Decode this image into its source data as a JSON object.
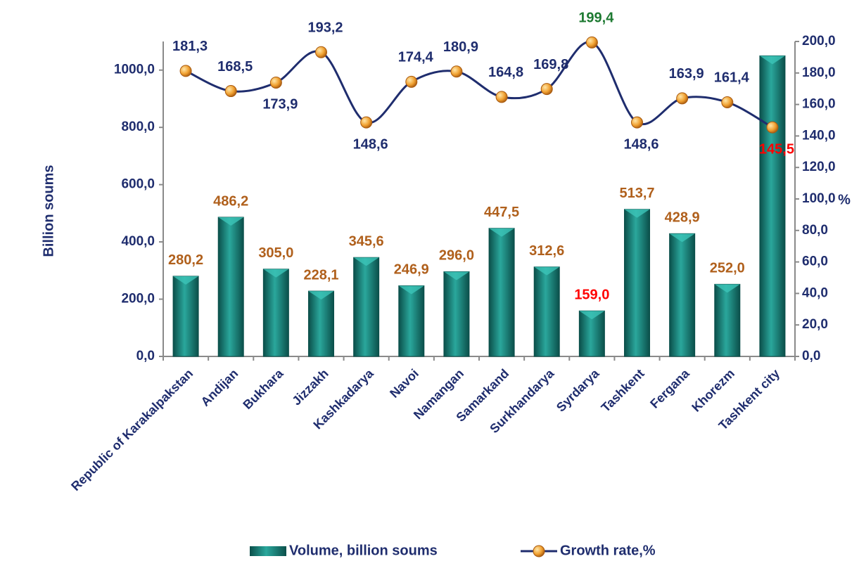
{
  "chart_data": {
    "type": "bar_line",
    "categories": [
      "Republic of Karakalpakstan",
      "Andijan",
      "Bukhara",
      "Jizzakh",
      "Kashkadarya",
      "Navoi",
      "Namangan",
      "Samarkand",
      "Surkhandarya",
      "Syrdarya",
      "Tashkent",
      "Fergana",
      "Khorezm",
      "Tashkent city"
    ],
    "series": [
      {
        "name": "Volume, billion soums",
        "type": "bar",
        "color": "#1a8a80",
        "values": [
          280.2,
          486.2,
          305.0,
          228.1,
          345.6,
          246.9,
          296.0,
          447.5,
          312.6,
          159.0,
          513.7,
          428.9,
          252.0,
          1050
        ],
        "value_labels": [
          "280,2",
          "486,2",
          "305,0",
          "228,1",
          "345,6",
          "246,9",
          "296,0",
          "447,5",
          "312,6",
          "159,0",
          "513,7",
          "428,9",
          "252,0",
          null
        ],
        "value_label_colors": [
          "#b0601c",
          "#b0601c",
          "#b0601c",
          "#b0601c",
          "#b0601c",
          "#b0601c",
          "#b0601c",
          "#b0601c",
          "#b0601c",
          "#ff0000",
          "#b0601c",
          "#b0601c",
          "#b0601c",
          "#b0601c"
        ]
      },
      {
        "name": "Growth rate,%",
        "type": "line",
        "axis": "y2",
        "color": "#1f2d6e",
        "marker_color": "#f0a030",
        "values": [
          181.3,
          168.5,
          173.9,
          193.2,
          148.6,
          174.4,
          180.9,
          164.8,
          169.8,
          199.4,
          148.6,
          163.9,
          161.4,
          145.5
        ],
        "value_labels": [
          "181,3",
          "168,5",
          "173,9",
          "193,2",
          "148,6",
          "174,4",
          "180,9",
          "164,8",
          "169,8",
          "199,4",
          "148,6",
          "163,9",
          "161,4",
          "145,5"
        ],
        "value_label_colors": [
          "#1f2d6e",
          "#1f2d6e",
          "#1f2d6e",
          "#1f2d6e",
          "#1f2d6e",
          "#1f2d6e",
          "#1f2d6e",
          "#1f2d6e",
          "#1f2d6e",
          "#1e7a32",
          "#1f2d6e",
          "#1f2d6e",
          "#1f2d6e",
          "#ff0000"
        ]
      }
    ],
    "ylabel": "Billion soums",
    "y2label": "%",
    "ylim": [
      0,
      1100
    ],
    "yticks": [
      {
        "value": 0,
        "label": "0,0"
      },
      {
        "value": 200,
        "label": "200,0"
      },
      {
        "value": 400,
        "label": "400,0"
      },
      {
        "value": 600,
        "label": "600,0"
      },
      {
        "value": 800,
        "label": "800,0"
      },
      {
        "value": 1000,
        "label": "1000,0"
      }
    ],
    "y2lim": [
      0,
      200
    ],
    "y2ticks": [
      {
        "value": 0,
        "label": "0,0"
      },
      {
        "value": 20,
        "label": "20,0"
      },
      {
        "value": 40,
        "label": "40,0"
      },
      {
        "value": 60,
        "label": "60,0"
      },
      {
        "value": 80,
        "label": "80,0"
      },
      {
        "value": 100,
        "label": "100,0"
      },
      {
        "value": 120,
        "label": "120,0"
      },
      {
        "value": 140,
        "label": "140,0"
      },
      {
        "value": 160,
        "label": "160,0"
      },
      {
        "value": 180,
        "label": "180,0"
      },
      {
        "value": 200,
        "label": "200,0"
      }
    ],
    "grid": false,
    "legend": "bottom"
  }
}
